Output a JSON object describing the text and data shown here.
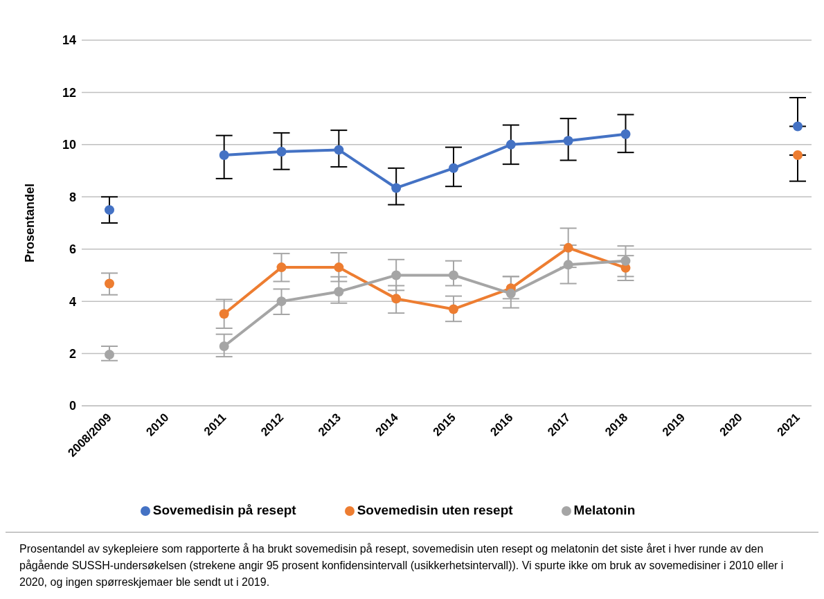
{
  "chart_data": {
    "type": "line",
    "ylabel": "Prosentandel",
    "categories": [
      "2008/2009",
      "2010",
      "2011",
      "2012",
      "2013",
      "2014",
      "2015",
      "2016",
      "2017",
      "2018",
      "2019",
      "2020",
      "2021"
    ],
    "series": [
      {
        "name": "Sovemedisin på resept",
        "color": "#4472c4",
        "values": [
          7.5,
          null,
          9.6,
          9.73,
          9.8,
          8.34,
          9.1,
          10.0,
          10.15,
          10.4,
          null,
          null,
          10.7
        ],
        "errors": [
          [
            7.0,
            8.0
          ],
          null,
          [
            8.7,
            10.35
          ],
          [
            9.05,
            10.45
          ],
          [
            9.15,
            10.55
          ],
          [
            7.7,
            9.1
          ],
          [
            8.4,
            9.9
          ],
          [
            9.25,
            10.75
          ],
          [
            9.4,
            11.0
          ],
          [
            9.7,
            11.15
          ],
          null,
          null,
          [
            10.7,
            11.8
          ]
        ]
      },
      {
        "name": "Sovemedisin uten resept",
        "color": "#ed7d31",
        "values": [
          4.68,
          null,
          3.52,
          5.3,
          5.3,
          4.1,
          3.7,
          4.5,
          6.05,
          5.28,
          null,
          null,
          9.6
        ],
        "errors": [
          [
            4.25,
            5.08
          ],
          null,
          [
            2.97,
            4.07
          ],
          [
            4.76,
            5.83
          ],
          [
            4.76,
            5.86
          ],
          [
            3.55,
            4.6
          ],
          [
            3.23,
            4.2
          ],
          [
            4.1,
            4.95
          ],
          [
            5.3,
            6.8
          ],
          [
            4.8,
            5.75
          ],
          null,
          null,
          [
            8.6,
            9.6
          ]
        ]
      },
      {
        "name": "Melatonin",
        "color": "#a5a5a5",
        "values": [
          1.96,
          null,
          2.28,
          4.0,
          4.37,
          5.0,
          5.0,
          4.3,
          5.4,
          5.55,
          null,
          null,
          null
        ],
        "errors": [
          [
            1.73,
            2.28
          ],
          null,
          [
            1.88,
            2.74
          ],
          [
            3.5,
            4.47
          ],
          [
            3.93,
            4.94
          ],
          [
            4.42,
            5.6
          ],
          [
            4.6,
            5.55
          ],
          [
            3.75,
            4.95
          ],
          [
            4.68,
            6.15
          ],
          [
            4.95,
            6.12
          ],
          null,
          null,
          null
        ]
      }
    ],
    "ylim": [
      0,
      14
    ],
    "yticks": [
      0,
      2,
      4,
      6,
      8,
      10,
      12,
      14
    ],
    "grid": "y",
    "legend": "bottom",
    "marker": "circle",
    "line_style": "solid",
    "annotations": [
      "Prosentandel av sykepleiere som rapporterte å ha brukt sovemedisin på resept, sovemedisin uten resept og melatonin det siste året i hver runde av den pågående SUSSH-undersøkelsen (strekene angir 95 prosent konfidensintervall (usikkerhetsintervall)). Vi spurte ikke om bruk av sovemedisiner i 2010 eller i 2020, og ingen spørreskjemaer ble sendt ut i 2019."
    ]
  }
}
